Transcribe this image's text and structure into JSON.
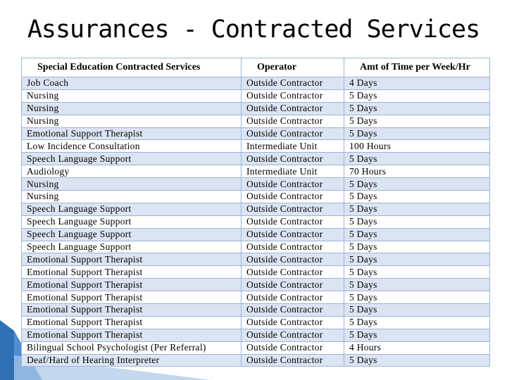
{
  "title": "Assurances - Contracted Services",
  "table": {
    "header": [
      "Special Education Contracted Services",
      "Operator",
      "Amt of Time per Week/Hr"
    ],
    "rows": [
      [
        "Job Coach",
        "Outside Contractor",
        "4 Days"
      ],
      [
        "Nursing",
        "Outside Contractor",
        "5 Days"
      ],
      [
        "Nursing",
        "Outside Contractor",
        "5 Days"
      ],
      [
        "Nursing",
        "Outside Contractor",
        "5 Days"
      ],
      [
        "Emotional Support Therapist",
        "Outside Contractor",
        "5 Days"
      ],
      [
        "Low Incidence Consultation",
        "Intermediate Unit",
        "100 Hours"
      ],
      [
        "Speech Language Support",
        "Outside Contractor",
        "5 Days"
      ],
      [
        "Audiology",
        "Intermediate Unit",
        "70 Hours"
      ],
      [
        "Nursing",
        "Outside Contractor",
        "5 Days"
      ],
      [
        "Nursing",
        "Outside Contractor",
        "5 Days"
      ],
      [
        "Speech Language Support",
        "Outside Contractor",
        "5 Days"
      ],
      [
        "Speech Language Support",
        "Outside Contractor",
        "5 Days"
      ],
      [
        "Speech Language Support",
        "Outside Contractor",
        "5 Days"
      ],
      [
        "Speech Language Support",
        "Outside Contractor",
        "5 Days"
      ],
      [
        "Emotional Support Therapist",
        "Outside Contractor",
        "5 Days"
      ],
      [
        "Emotional Support Therapist",
        "Outside Contractor",
        "5 Days"
      ],
      [
        "Emotional Support Therapist",
        "Outside Contractor",
        "5 Days"
      ],
      [
        "Emotional Support Therapist",
        "Outside Contractor",
        "5 Days"
      ],
      [
        "Emotional Support Therapist",
        "Outside Contractor",
        "5 Days"
      ],
      [
        "Emotional Support Therapist",
        "Outside Contractor",
        "5 Days"
      ],
      [
        "Emotional Support Therapist",
        "Outside Contractor",
        "5 Days"
      ],
      [
        "Bilingual School Psychologist (Per Referral)",
        "Outside Contractor",
        "4 Hours"
      ],
      [
        "Deaf/Hard of Hearing Interpreter",
        "Outside Contractor",
        "5 Days"
      ]
    ]
  }
}
